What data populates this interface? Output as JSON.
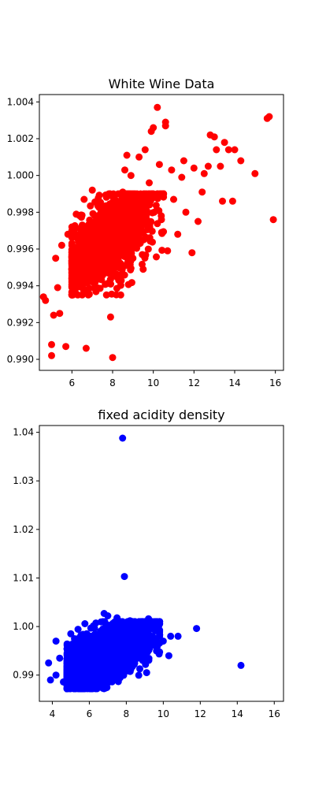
{
  "chart_data": [
    {
      "type": "scatter",
      "title": "White Wine Data",
      "xlabel": "",
      "ylabel": "",
      "xlim": [
        4.4,
        16.4
      ],
      "ylim": [
        0.9894,
        1.0044
      ],
      "xticks": [
        6,
        8,
        10,
        12,
        14,
        16
      ],
      "xtick_labels": [
        "6",
        "8",
        "10",
        "12",
        "14",
        "16"
      ],
      "yticks": [
        0.99,
        0.992,
        0.994,
        0.996,
        0.998,
        1.0,
        1.002,
        1.004
      ],
      "ytick_labels": [
        "0.990",
        "0.992",
        "0.994",
        "0.996",
        "0.998",
        "1.000",
        "1.002",
        "1.004"
      ],
      "grid": false,
      "series": [
        {
          "color": "#ff0000",
          "points": [
            [
              4.6,
              0.9934
            ],
            [
              4.7,
              0.9932
            ],
            [
              5.0,
              0.9902
            ],
            [
              5.0,
              0.9908
            ],
            [
              5.1,
              0.9924
            ],
            [
              5.2,
              0.9955
            ],
            [
              5.3,
              0.9939
            ],
            [
              5.4,
              0.9925
            ],
            [
              5.5,
              0.9962
            ],
            [
              5.7,
              0.9907
            ],
            [
              5.8,
              0.9968
            ],
            [
              6.0,
              0.9972
            ],
            [
              6.1,
              0.995
            ],
            [
              6.4,
              0.9978
            ],
            [
              6.6,
              0.9987
            ],
            [
              6.7,
              0.9906
            ],
            [
              6.8,
              0.9946
            ],
            [
              6.9,
              0.9958
            ],
            [
              7.0,
              0.9992
            ],
            [
              7.2,
              0.9938
            ],
            [
              7.3,
              0.9965
            ],
            [
              7.4,
              0.9982
            ],
            [
              7.6,
              0.9949
            ],
            [
              7.8,
              0.997
            ],
            [
              7.9,
              0.9923
            ],
            [
              8.0,
              0.9901
            ],
            [
              8.1,
              0.9985
            ],
            [
              8.2,
              0.9978
            ],
            [
              8.3,
              0.9943
            ],
            [
              8.4,
              0.9935
            ],
            [
              8.5,
              0.9991
            ],
            [
              8.6,
              1.0003
            ],
            [
              8.7,
              1.0011
            ],
            [
              8.8,
              0.9961
            ],
            [
              8.9,
              1.0
            ],
            [
              9.0,
              0.9955
            ],
            [
              9.3,
              1.001
            ],
            [
              9.4,
              0.9972
            ],
            [
              9.5,
              0.9949
            ],
            [
              9.6,
              1.0014
            ],
            [
              9.8,
              0.9996
            ],
            [
              9.9,
              1.0024
            ],
            [
              10.0,
              1.0026
            ],
            [
              10.2,
              1.0037
            ],
            [
              10.3,
              1.0006
            ],
            [
              10.4,
              0.9976
            ],
            [
              10.6,
              1.0029
            ],
            [
              10.6,
              1.0027
            ],
            [
              10.7,
              0.9959
            ],
            [
              10.9,
              1.0003
            ],
            [
              11.0,
              0.9987
            ],
            [
              11.2,
              0.9968
            ],
            [
              11.4,
              0.9999
            ],
            [
              11.5,
              1.0008
            ],
            [
              11.6,
              0.998
            ],
            [
              11.9,
              0.9958
            ],
            [
              12.0,
              1.0004
            ],
            [
              12.2,
              0.9975
            ],
            [
              12.4,
              0.9991
            ],
            [
              12.5,
              1.0001
            ],
            [
              12.7,
              1.0005
            ],
            [
              12.8,
              1.0022
            ],
            [
              13.0,
              1.0021
            ],
            [
              13.1,
              1.0014
            ],
            [
              13.3,
              1.0005
            ],
            [
              13.4,
              0.9986
            ],
            [
              13.5,
              1.0018
            ],
            [
              13.7,
              1.0014
            ],
            [
              13.9,
              0.9986
            ],
            [
              14.0,
              1.0014
            ],
            [
              14.3,
              1.0008
            ],
            [
              15.0,
              1.0001
            ],
            [
              15.6,
              1.0031
            ],
            [
              15.7,
              1.0032
            ],
            [
              15.9,
              0.9976
            ]
          ],
          "cluster": {
            "x_range": [
              6.0,
              10.5
            ],
            "y_range": [
              0.9935,
              0.999
            ],
            "center": [
              7.8,
              0.9965
            ]
          }
        }
      ]
    },
    {
      "type": "scatter",
      "title": "fixed acidity density",
      "xlabel": "",
      "ylabel": "",
      "xlim": [
        3.3,
        16.5
      ],
      "ylim": [
        0.9846,
        1.0414
      ],
      "xticks": [
        4,
        6,
        8,
        10,
        12,
        14,
        16
      ],
      "xtick_labels": [
        "4",
        "6",
        "8",
        "10",
        "12",
        "14",
        "16"
      ],
      "yticks": [
        0.99,
        1.0,
        1.01,
        1.02,
        1.03,
        1.04
      ],
      "ytick_labels": [
        "0.99",
        "1.00",
        "1.01",
        "1.02",
        "1.03",
        "1.04"
      ],
      "grid": false,
      "series": [
        {
          "color": "#0000ff",
          "points": [
            [
              3.8,
              0.9925
            ],
            [
              3.9,
              0.989
            ],
            [
              4.2,
              0.99
            ],
            [
              4.2,
              0.997
            ],
            [
              4.4,
              0.9935
            ],
            [
              4.6,
              0.9886
            ],
            [
              4.8,
              0.9945
            ],
            [
              5.0,
              0.9985
            ],
            [
              5.2,
              0.9975
            ],
            [
              5.3,
              0.9889
            ],
            [
              6.8,
              1.0027
            ],
            [
              7.0,
              1.0022
            ],
            [
              7.5,
              1.0018
            ],
            [
              7.8,
              1.0388
            ],
            [
              7.9,
              1.0103
            ],
            [
              8.2,
              1.0012
            ],
            [
              8.5,
              1.0005
            ],
            [
              8.9,
              0.993
            ],
            [
              9.1,
              0.9905
            ],
            [
              9.2,
              1.0016
            ],
            [
              9.5,
              1.0
            ],
            [
              9.8,
              0.998
            ],
            [
              10.0,
              0.997
            ],
            [
              10.3,
              0.994
            ],
            [
              10.4,
              0.998
            ],
            [
              10.8,
              0.998
            ],
            [
              11.8,
              0.9996
            ],
            [
              14.2,
              0.992
            ]
          ],
          "cluster": {
            "x_range": [
              4.8,
              9.8
            ],
            "y_range": [
              0.9872,
              1.001
            ],
            "center": [
              6.8,
              0.9938
            ]
          }
        }
      ]
    }
  ]
}
